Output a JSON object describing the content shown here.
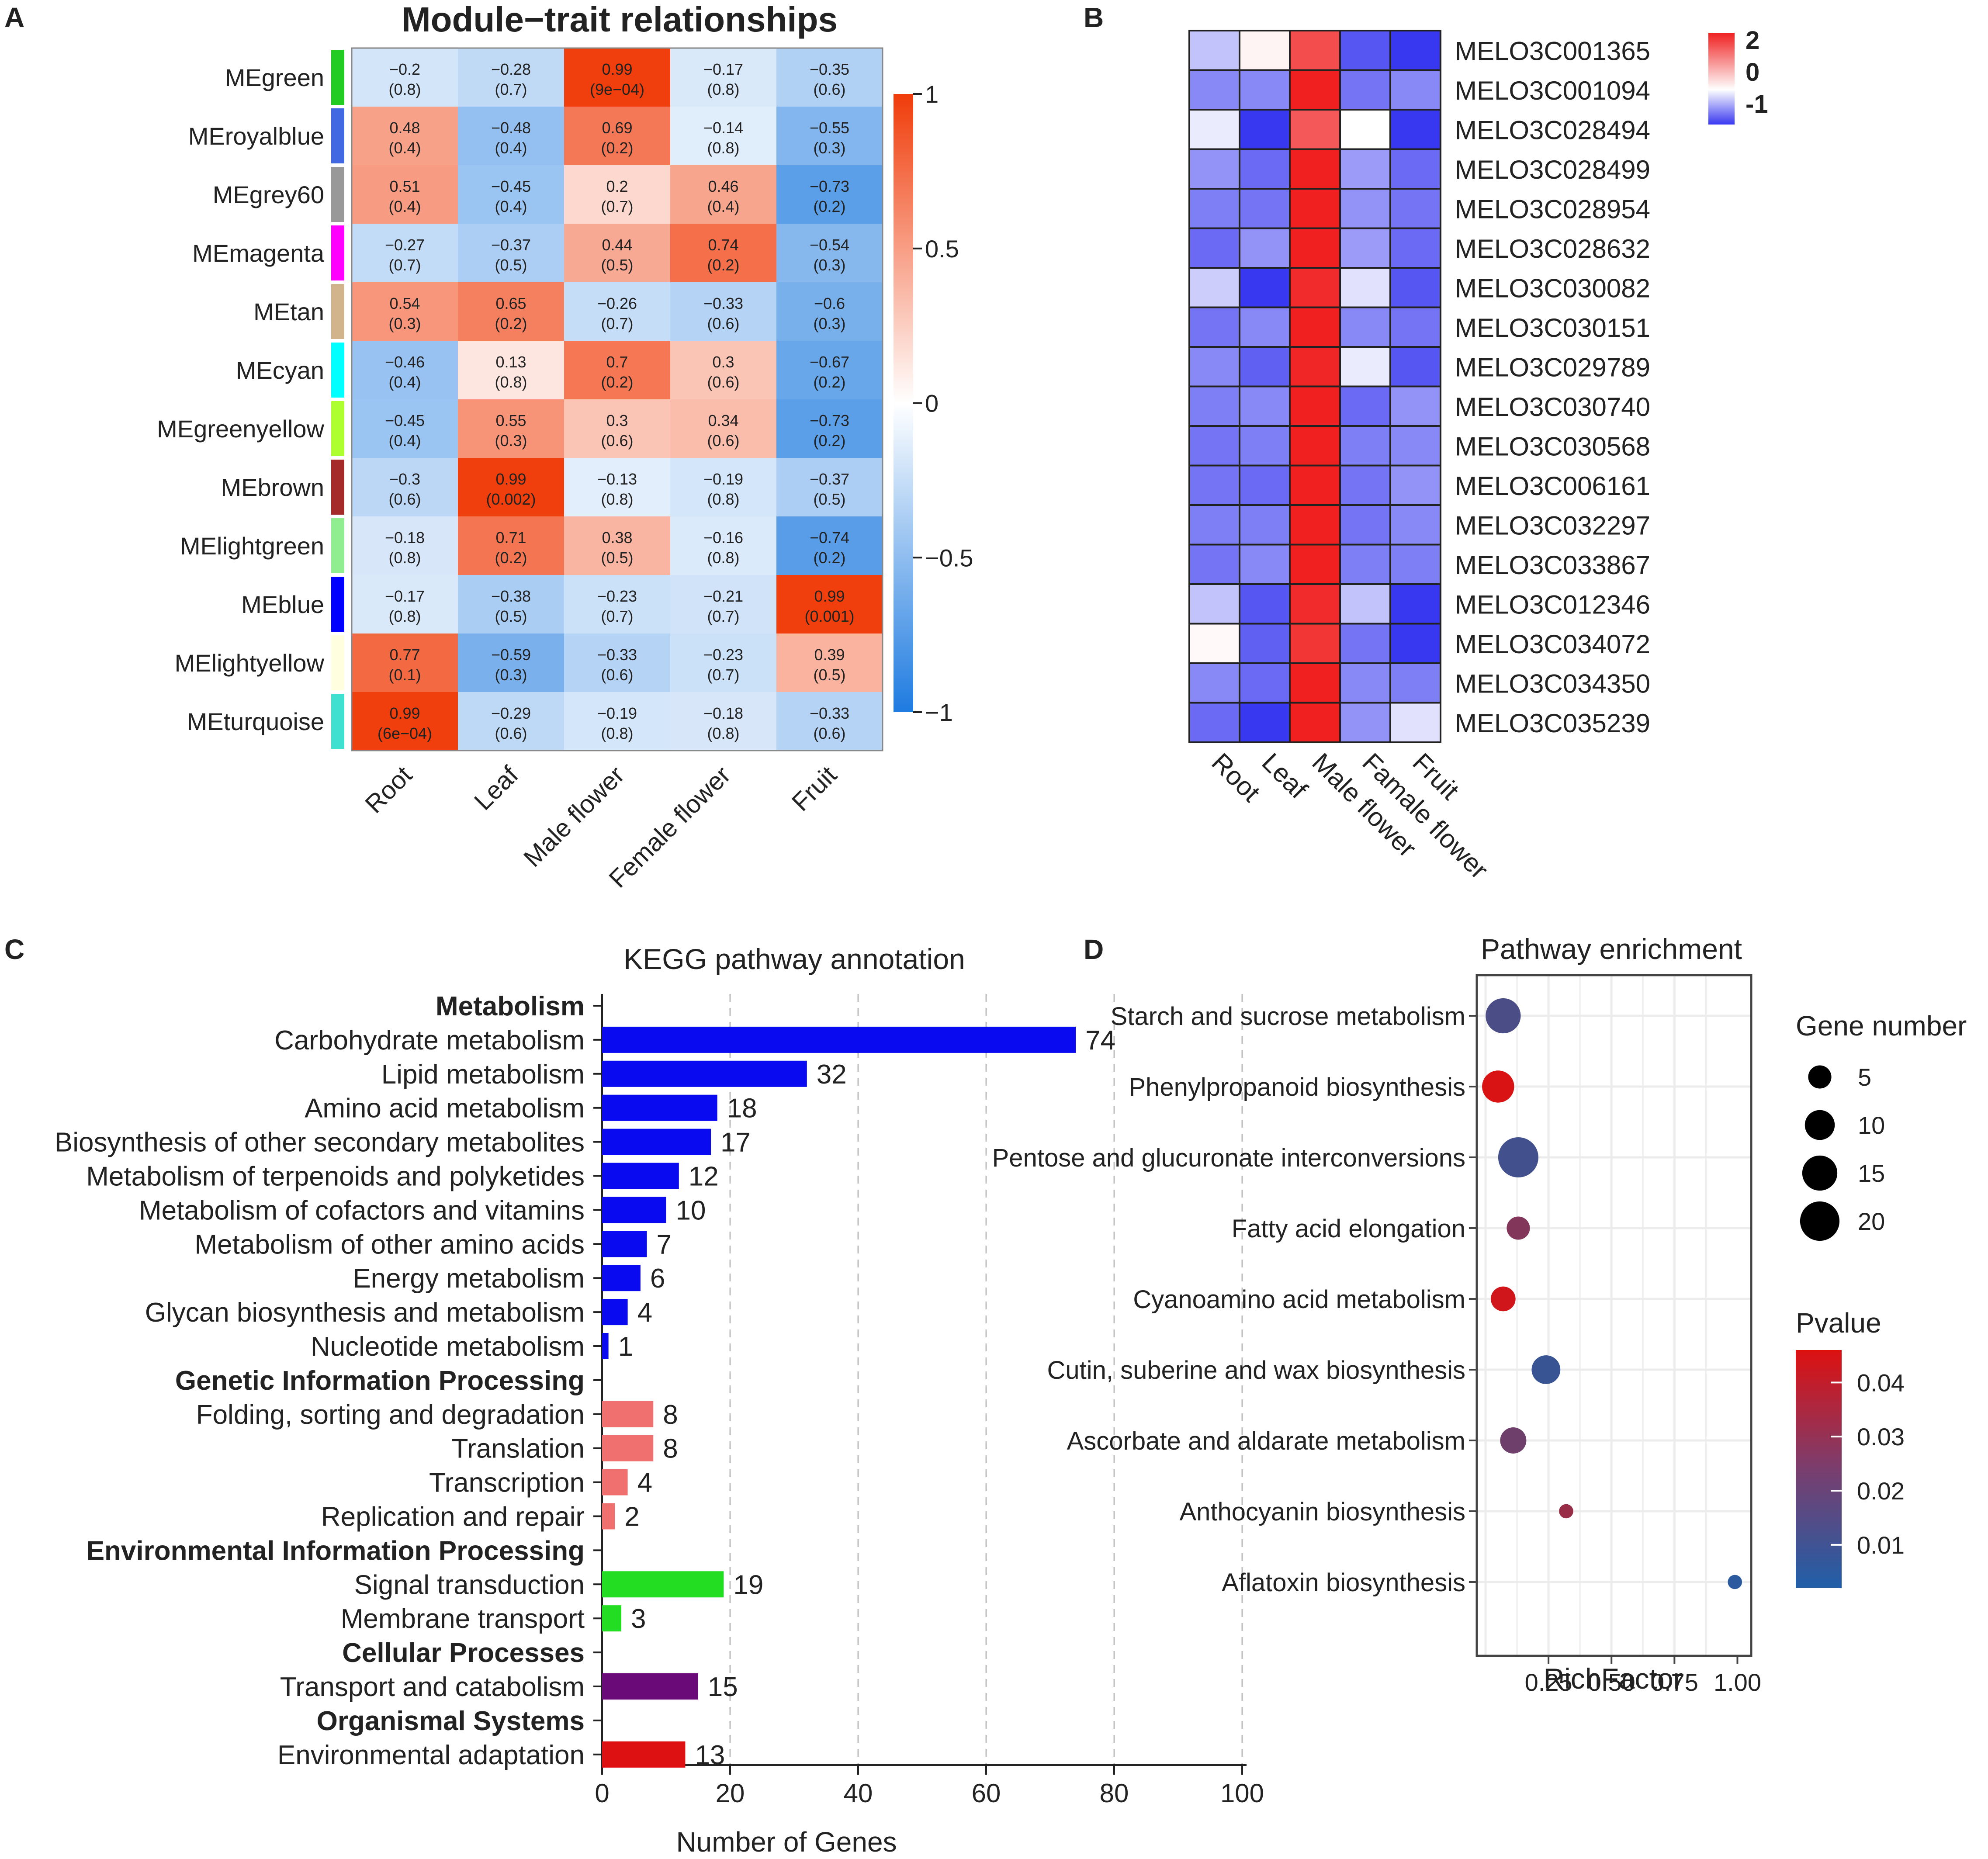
{
  "chart_data": [
    {
      "panel": "A",
      "type": "heatmap",
      "title": "Module−trait relationships",
      "rows": [
        "MEgreen",
        "MEroyalblue",
        "MEgrey60",
        "MEmagenta",
        "MEtan",
        "MEcyan",
        "MEgreenyellow",
        "MEbrown",
        "MElightgreen",
        "MEblue",
        "MElightyellow",
        "MEturquoise"
      ],
      "row_colors": [
        "#22cc22",
        "#4169e1",
        "#999999",
        "#ff00ff",
        "#d2b48c",
        "#00ffff",
        "#adff2f",
        "#a52a2a",
        "#90ee90",
        "#0000ff",
        "#ffffe0",
        "#40e0d0"
      ],
      "columns": [
        "Root",
        "Leaf",
        "Male flower",
        "Female flower",
        "Fruit"
      ],
      "values": [
        [
          -0.2,
          -0.28,
          0.99,
          -0.17,
          -0.35
        ],
        [
          0.48,
          -0.48,
          0.69,
          -0.14,
          -0.55
        ],
        [
          0.51,
          -0.45,
          0.2,
          0.46,
          -0.73
        ],
        [
          -0.27,
          -0.37,
          0.44,
          0.74,
          -0.54
        ],
        [
          0.54,
          0.65,
          -0.26,
          -0.33,
          -0.6
        ],
        [
          -0.46,
          0.13,
          0.7,
          0.3,
          -0.67
        ],
        [
          -0.45,
          0.55,
          0.3,
          0.34,
          -0.73
        ],
        [
          -0.3,
          0.99,
          -0.13,
          -0.19,
          -0.37
        ],
        [
          -0.18,
          0.71,
          0.38,
          -0.16,
          -0.74
        ],
        [
          -0.17,
          -0.38,
          -0.23,
          -0.21,
          0.99
        ],
        [
          0.77,
          -0.59,
          -0.33,
          -0.23,
          0.39
        ],
        [
          0.99,
          -0.29,
          -0.19,
          -0.18,
          -0.33
        ]
      ],
      "pvalues": [
        [
          "(0.8)",
          "(0.7)",
          "(9e−04)",
          "(0.8)",
          "(0.6)"
        ],
        [
          "(0.4)",
          "(0.4)",
          "(0.2)",
          "(0.8)",
          "(0.3)"
        ],
        [
          "(0.4)",
          "(0.4)",
          "(0.7)",
          "(0.4)",
          "(0.2)"
        ],
        [
          "(0.7)",
          "(0.5)",
          "(0.5)",
          "(0.2)",
          "(0.3)"
        ],
        [
          "(0.3)",
          "(0.2)",
          "(0.7)",
          "(0.6)",
          "(0.3)"
        ],
        [
          "(0.4)",
          "(0.8)",
          "(0.2)",
          "(0.6)",
          "(0.2)"
        ],
        [
          "(0.4)",
          "(0.3)",
          "(0.6)",
          "(0.6)",
          "(0.2)"
        ],
        [
          "(0.6)",
          "(0.002)",
          "(0.8)",
          "(0.8)",
          "(0.5)"
        ],
        [
          "(0.8)",
          "(0.2)",
          "(0.5)",
          "(0.8)",
          "(0.2)"
        ],
        [
          "(0.8)",
          "(0.5)",
          "(0.7)",
          "(0.7)",
          "(0.001)"
        ],
        [
          "(0.1)",
          "(0.3)",
          "(0.6)",
          "(0.7)",
          "(0.5)"
        ],
        [
          "(6e−04)",
          "(0.6)",
          "(0.8)",
          "(0.8)",
          "(0.6)"
        ]
      ],
      "scale": {
        "min": -1,
        "max": 1,
        "ticks": [
          "1",
          "0.5",
          "0",
          "−0.5",
          "−1"
        ],
        "low_color": "#1e7be0",
        "mid_color": "#ffffff",
        "high_color": "#f03c0a"
      }
    },
    {
      "panel": "B",
      "type": "heatmap",
      "rows": [
        "MELO3C001365",
        "MELO3C001094",
        "MELO3C028494",
        "MELO3C028499",
        "MELO3C028954",
        "MELO3C028632",
        "MELO3C030082",
        "MELO3C030151",
        "MELO3C029789",
        "MELO3C030740",
        "MELO3C030568",
        "MELO3C006161",
        "MELO3C032297",
        "MELO3C033867",
        "MELO3C012346",
        "MELO3C034072",
        "MELO3C034350",
        "MELO3C035239"
      ],
      "columns": [
        "Root",
        "Leaf",
        "Male flower",
        "Famale flower",
        "Fruit"
      ],
      "values": [
        [
          -0.3,
          0.1,
          1.6,
          -0.85,
          -1.2
        ],
        [
          -0.6,
          -0.6,
          2.0,
          -0.7,
          -0.6
        ],
        [
          -0.1,
          -1.1,
          1.5,
          0.0,
          -1.1
        ],
        [
          -0.55,
          -0.75,
          2.0,
          -0.5,
          -0.75
        ],
        [
          -0.65,
          -0.7,
          2.0,
          -0.55,
          -0.7
        ],
        [
          -0.75,
          -0.55,
          2.0,
          -0.5,
          -0.75
        ],
        [
          -0.25,
          -1.2,
          1.9,
          -0.15,
          -0.85
        ],
        [
          -0.7,
          -0.6,
          2.0,
          -0.6,
          -0.7
        ],
        [
          -0.6,
          -0.8,
          1.95,
          -0.1,
          -0.85
        ],
        [
          -0.65,
          -0.6,
          2.0,
          -0.75,
          -0.55
        ],
        [
          -0.7,
          -0.65,
          2.0,
          -0.65,
          -0.6
        ],
        [
          -0.7,
          -0.75,
          2.0,
          -0.7,
          -0.55
        ],
        [
          -0.65,
          -0.65,
          2.0,
          -0.7,
          -0.6
        ],
        [
          -0.7,
          -0.6,
          2.0,
          -0.65,
          -0.65
        ],
        [
          -0.3,
          -0.85,
          1.9,
          -0.3,
          -1.0
        ],
        [
          0.05,
          -0.8,
          1.8,
          -0.7,
          -1.1
        ],
        [
          -0.6,
          -0.75,
          2.0,
          -0.6,
          -0.65
        ],
        [
          -0.75,
          -1.0,
          2.0,
          -0.55,
          -0.15
        ]
      ],
      "scale": {
        "min": -1,
        "max": 2,
        "ticks": [
          "2",
          "0",
          "-1"
        ],
        "low_color": "#3838f0",
        "mid_color": "#ffffff",
        "high_color": "#f02020"
      }
    },
    {
      "panel": "C",
      "type": "bar",
      "orientation": "horizontal",
      "title": "KEGG pathway annotation",
      "xlabel": "Number of Genes",
      "xlim": [
        0,
        100
      ],
      "xticks": [
        0,
        20,
        40,
        60,
        80,
        100
      ],
      "rows": [
        {
          "label": "Metabolism",
          "header": true
        },
        {
          "label": "Carbohydrate metabolism",
          "value": 74,
          "color": "#0a0af0"
        },
        {
          "label": "Lipid metabolism",
          "value": 32,
          "color": "#0a0af0"
        },
        {
          "label": "Amino acid metabolism",
          "value": 18,
          "color": "#0a0af0"
        },
        {
          "label": "Biosynthesis of other secondary metabolites",
          "value": 17,
          "color": "#0a0af0"
        },
        {
          "label": "Metabolism of terpenoids and polyketides",
          "value": 12,
          "color": "#0a0af0"
        },
        {
          "label": "Metabolism of cofactors and vitamins",
          "value": 10,
          "color": "#0a0af0"
        },
        {
          "label": "Metabolism of other amino acids",
          "value": 7,
          "color": "#0a0af0"
        },
        {
          "label": "Energy metabolism",
          "value": 6,
          "color": "#0a0af0"
        },
        {
          "label": "Glycan biosynthesis and metabolism",
          "value": 4,
          "color": "#0a0af0"
        },
        {
          "label": "Nucleotide metabolism",
          "value": 1,
          "color": "#0a0af0"
        },
        {
          "label": "Genetic Information Processing",
          "header": true
        },
        {
          "label": "Folding, sorting and degradation",
          "value": 8,
          "color": "#f07070"
        },
        {
          "label": "Translation",
          "value": 8,
          "color": "#f07070"
        },
        {
          "label": "Transcription",
          "value": 4,
          "color": "#f07070"
        },
        {
          "label": "Replication and repair",
          "value": 2,
          "color": "#f07070"
        },
        {
          "label": "Environmental Information Processing",
          "header": true
        },
        {
          "label": "Signal transduction",
          "value": 19,
          "color": "#22dd22"
        },
        {
          "label": "Membrane transport",
          "value": 3,
          "color": "#22dd22"
        },
        {
          "label": "Cellular Processes",
          "header": true
        },
        {
          "label": "Transport and catabolism",
          "value": 15,
          "color": "#6a0a78"
        },
        {
          "label": "Organismal Systems",
          "header": true
        },
        {
          "label": "Environmental adaptation",
          "value": 13,
          "color": "#dd1111"
        }
      ]
    },
    {
      "panel": "D",
      "type": "scatter",
      "title": "Pathway enrichment",
      "xlabel": "RichFactor",
      "xlim": [
        0,
        1.02
      ],
      "xticks": [
        "0.25",
        "0.50",
        "0.75",
        "1.00"
      ],
      "xtick_values": [
        0.25,
        0.5,
        0.75,
        1.0
      ],
      "points": [
        {
          "label": "Starch and sucrose metabolism",
          "x": 0.07,
          "genes": 15,
          "pvalue": 0.012
        },
        {
          "label": "Phenylpropanoid biosynthesis",
          "x": 0.05,
          "genes": 12,
          "pvalue": 0.045
        },
        {
          "label": "Pentose and glucuronate interconversions",
          "x": 0.13,
          "genes": 21,
          "pvalue": 0.01
        },
        {
          "label": "Fatty acid elongation",
          "x": 0.13,
          "genes": 5,
          "pvalue": 0.025
        },
        {
          "label": "Cyanoamino acid metabolism",
          "x": 0.07,
          "genes": 6,
          "pvalue": 0.043
        },
        {
          "label": "Cutin, suberine and wax biosynthesis",
          "x": 0.24,
          "genes": 9,
          "pvalue": 0.008
        },
        {
          "label": "Ascorbate and aldarate metabolism",
          "x": 0.11,
          "genes": 7,
          "pvalue": 0.02
        },
        {
          "label": "Anthocyanin biosynthesis",
          "x": 0.32,
          "genes": 1,
          "pvalue": 0.03
        },
        {
          "label": "Aflatoxin biosynthesis",
          "x": 0.99,
          "genes": 1,
          "pvalue": 0.005
        }
      ],
      "size_legend": {
        "title": "Gene number",
        "values": [
          5,
          10,
          15,
          20
        ]
      },
      "color_legend": {
        "title": "Pvalue",
        "ticks": [
          "0.04",
          "0.03",
          "0.02",
          "0.01"
        ],
        "tick_values": [
          0.04,
          0.03,
          0.02,
          0.01
        ],
        "min": 0.002,
        "max": 0.046,
        "low_color": "#1f5fa8",
        "high_color": "#dd1111"
      }
    }
  ],
  "panel_labels": [
    "A",
    "B",
    "C",
    "D"
  ]
}
